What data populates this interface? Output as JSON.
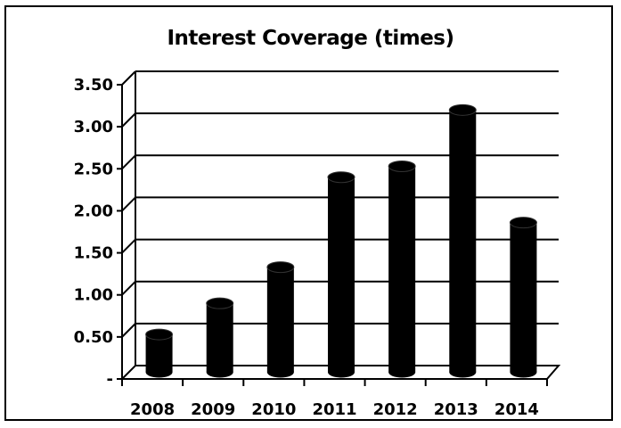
{
  "chart_data": {
    "type": "bar",
    "title": "Interest Coverage (times)",
    "xlabel": "",
    "ylabel": "",
    "categories": [
      "2008",
      "2009",
      "2010",
      "2011",
      "2012",
      "2013",
      "2014"
    ],
    "values": [
      0.45,
      0.82,
      1.25,
      2.32,
      2.45,
      3.12,
      1.78
    ],
    "ylim": [
      0,
      3.5
    ],
    "y_ticks": [
      0,
      0.5,
      1.0,
      1.5,
      2.0,
      2.5,
      3.0,
      3.5
    ],
    "y_tick_labels": [
      "-",
      "0.50",
      "1.00",
      "1.50",
      "2.00",
      "2.50",
      "3.00",
      "3.50"
    ],
    "grid": true,
    "legend": "none",
    "style": "3d-cylinder",
    "bar_color": "#000000"
  }
}
